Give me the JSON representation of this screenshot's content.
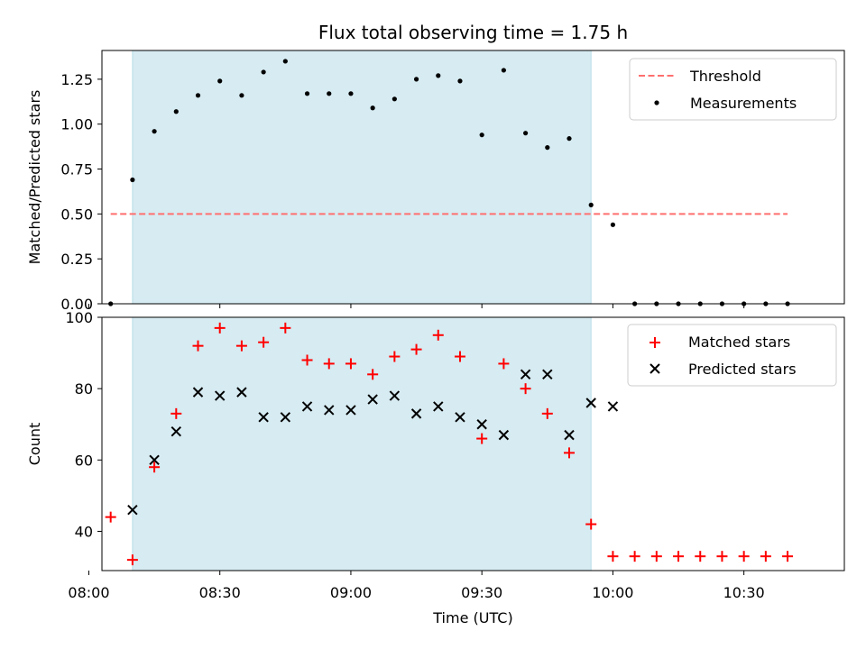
{
  "colors": {
    "shade": "#add8e6",
    "threshold": "#ff6f6f",
    "measurement": "#000000",
    "matched": "#ff0000",
    "predicted": "#000000"
  },
  "chart_data": [
    {
      "type": "scatter",
      "title": "Flux total observing time = 1.75 h",
      "xlabel": "",
      "ylabel": "Matched/Predicted stars",
      "xlim": [
        483,
        653
      ],
      "ylim": [
        0,
        1.41
      ],
      "yticks": [
        0,
        0.25,
        0.5,
        0.75,
        1.0,
        1.25
      ],
      "ytick_labels": [
        "0.00",
        "0.25",
        "0.50",
        "0.75",
        "1.00",
        "1.25"
      ],
      "shaded_interval": [
        490,
        595
      ],
      "threshold": {
        "name": "Threshold",
        "y": 0.5,
        "x": [
          485,
          640
        ]
      },
      "legend_position": "upper right",
      "series": [
        {
          "name": "Measurements",
          "x": [
            485,
            490,
            495,
            500,
            505,
            510,
            515,
            520,
            525,
            530,
            535,
            540,
            545,
            550,
            555,
            560,
            565,
            570,
            575,
            580,
            585,
            590,
            595,
            600,
            605,
            610,
            615,
            620,
            625,
            630,
            635,
            640
          ],
          "y": [
            0.0,
            0.69,
            0.96,
            1.07,
            1.16,
            1.24,
            1.16,
            1.29,
            1.35,
            1.17,
            1.17,
            1.17,
            1.09,
            1.14,
            1.25,
            1.27,
            1.24,
            0.94,
            1.3,
            0.95,
            0.87,
            0.92,
            0.55,
            0.44,
            0.0,
            0.0,
            0.0,
            0.0,
            0.0,
            0.0,
            0.0,
            0.0
          ]
        }
      ]
    },
    {
      "type": "scatter",
      "title": "",
      "xlabel": "Time (UTC)",
      "ylabel": "Count",
      "xlim": [
        483,
        653
      ],
      "ylim": [
        29,
        100
      ],
      "yticks": [
        40,
        60,
        80,
        100
      ],
      "ytick_labels": [
        "40",
        "60",
        "80",
        "100"
      ],
      "xticks": [
        480,
        510,
        540,
        570,
        600,
        630
      ],
      "xtick_labels": [
        "08:00",
        "08:30",
        "09:00",
        "09:30",
        "10:00",
        "10:30"
      ],
      "shaded_interval": [
        490,
        595
      ],
      "legend_position": "upper right",
      "series": [
        {
          "name": "Matched stars",
          "marker": "plus",
          "x": [
            485,
            490,
            495,
            500,
            505,
            510,
            515,
            520,
            525,
            530,
            535,
            540,
            545,
            550,
            555,
            560,
            565,
            570,
            575,
            580,
            585,
            590,
            595,
            600,
            605,
            610,
            615,
            620,
            625,
            630,
            635,
            640
          ],
          "y": [
            44,
            32,
            58,
            73,
            92,
            97,
            92,
            93,
            97,
            88,
            87,
            87,
            84,
            89,
            91,
            95,
            89,
            66,
            87,
            80,
            73,
            62,
            42,
            33,
            33,
            33,
            33,
            33,
            33,
            33,
            33,
            33
          ]
        },
        {
          "name": "Predicted stars",
          "marker": "x",
          "x": [
            490,
            495,
            500,
            505,
            510,
            515,
            520,
            525,
            530,
            535,
            540,
            545,
            550,
            555,
            560,
            565,
            570,
            575,
            580,
            585,
            590,
            595,
            600
          ],
          "y": [
            46,
            60,
            68,
            79,
            78,
            79,
            72,
            72,
            75,
            74,
            74,
            77,
            78,
            73,
            75,
            72,
            70,
            67,
            84,
            84,
            67,
            76,
            75
          ]
        }
      ]
    }
  ]
}
